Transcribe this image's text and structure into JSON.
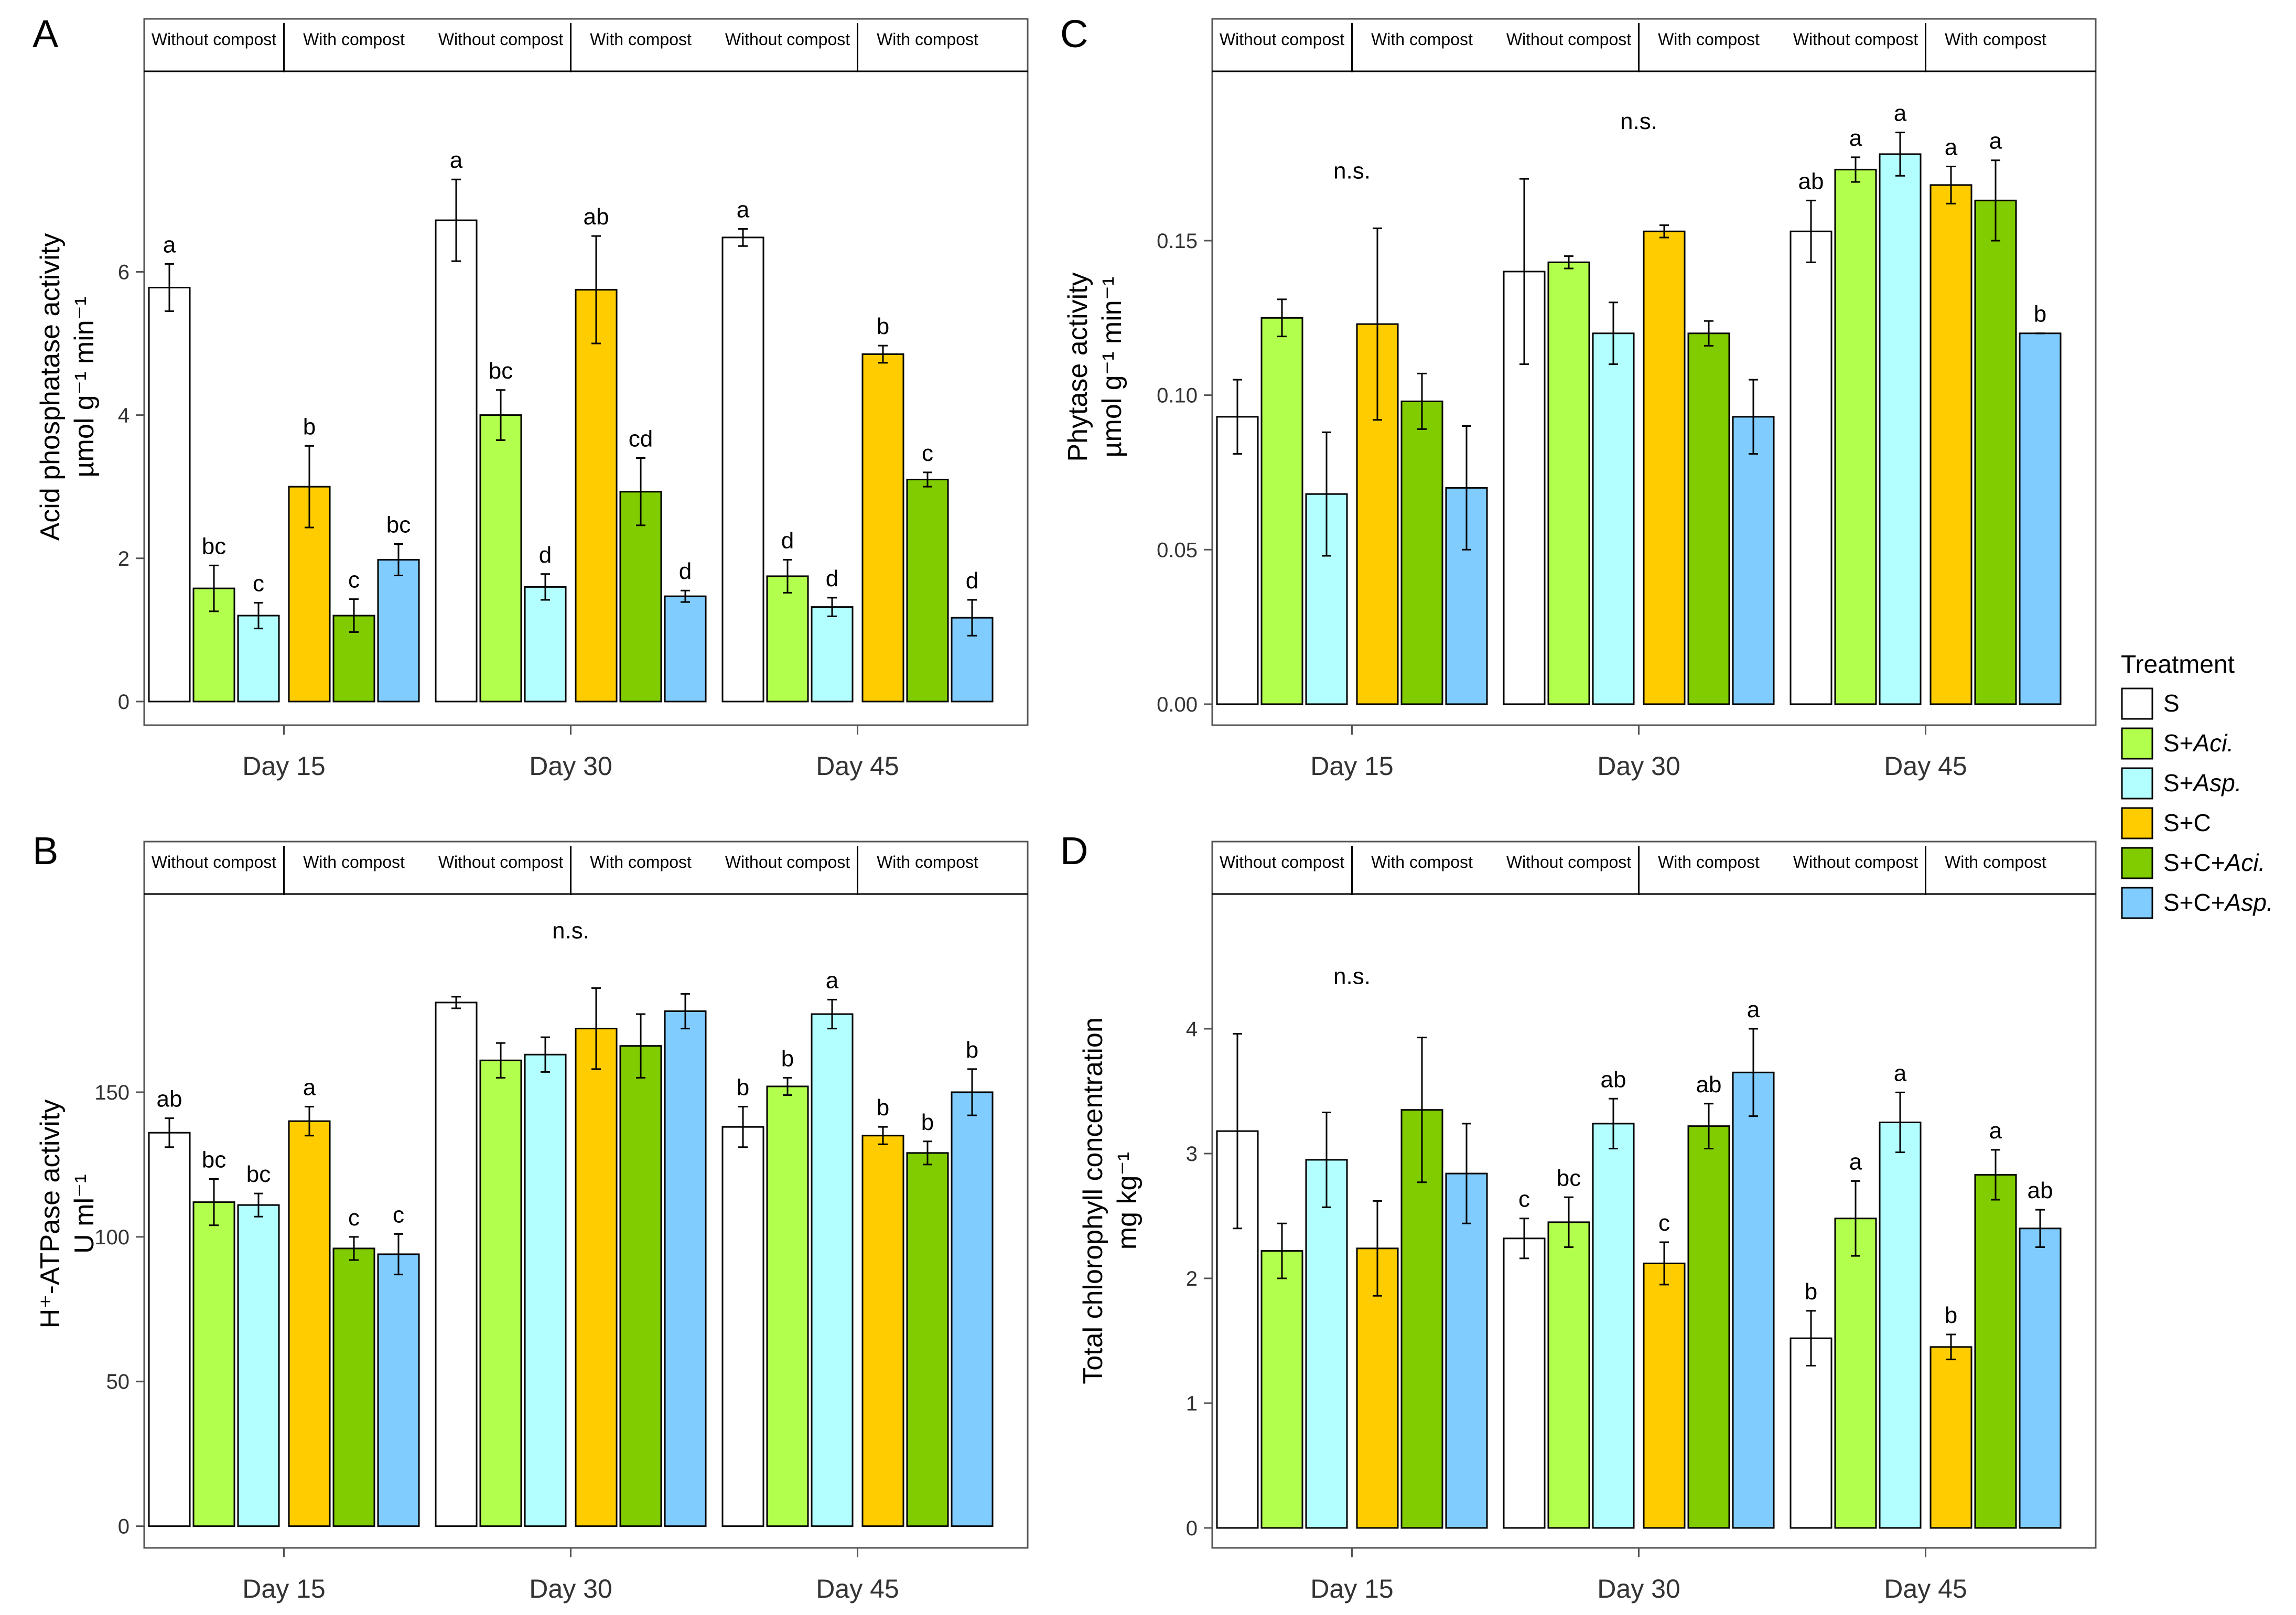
{
  "treatments": [
    {
      "key": "S",
      "label": "S",
      "italic": "",
      "color": "#ffffff"
    },
    {
      "key": "S_Aci",
      "label": "S+",
      "italic": "Aci.",
      "color": "#b3ff4d"
    },
    {
      "key": "S_Asp",
      "label": "S+",
      "italic": "Asp.",
      "color": "#b3ffff"
    },
    {
      "key": "S_C",
      "label": "S+C",
      "italic": "",
      "color": "#ffcc00"
    },
    {
      "key": "S_C_Aci",
      "label": "S+C+",
      "italic": "Aci.",
      "color": "#80cc00"
    },
    {
      "key": "S_C_Asp",
      "label": "S+C+",
      "italic": "Asp.",
      "color": "#80ccff"
    }
  ],
  "legend": {
    "title": "Treatment"
  },
  "strip_labels": [
    "Without compost",
    "With compost",
    "Without compost",
    "With compost",
    "Without compost",
    "With compost"
  ],
  "chart_data": [
    {
      "panel": "A",
      "type": "bar",
      "ylabel": [
        "Acid phosphatase activity",
        "µmol g⁻¹ min⁻¹"
      ],
      "categories": [
        "Day 15",
        "Day 30",
        "Day 45"
      ],
      "ylim": [
        -0.33,
        8.8
      ],
      "yticks": [
        {
          "v": 0,
          "t": "0"
        },
        {
          "v": 2,
          "t": "2"
        },
        {
          "v": 4,
          "t": "4"
        },
        {
          "v": 6,
          "t": "6"
        }
      ],
      "groups": [
        {
          "values": [
            5.78,
            1.58,
            1.2,
            3.0,
            1.2,
            1.98
          ],
          "errors": [
            0.33,
            0.32,
            0.18,
            0.57,
            0.23,
            0.22
          ],
          "letters": [
            "a",
            "bc",
            "c",
            "b",
            "c",
            "bc"
          ],
          "ns": ""
        },
        {
          "values": [
            6.72,
            4.0,
            1.6,
            5.75,
            2.93,
            1.47
          ],
          "errors": [
            0.57,
            0.35,
            0.18,
            0.75,
            0.47,
            0.08
          ],
          "letters": [
            "a",
            "bc",
            "d",
            "ab",
            "cd",
            "d"
          ],
          "ns": ""
        },
        {
          "values": [
            6.48,
            1.75,
            1.32,
            4.85,
            3.1,
            1.17
          ],
          "errors": [
            0.12,
            0.23,
            0.13,
            0.12,
            0.1,
            0.25
          ],
          "letters": [
            "a",
            "d",
            "d",
            "b",
            "c",
            "d"
          ],
          "ns": ""
        }
      ]
    },
    {
      "panel": "B",
      "type": "bar",
      "ylabel": [
        "H⁺-ATPase activity",
        "U ml⁻¹"
      ],
      "categories": [
        "Day 15",
        "Day 30",
        "Day 45"
      ],
      "ylim": [
        -7.5,
        218.5
      ],
      "yticks": [
        {
          "v": 0,
          "t": "0"
        },
        {
          "v": 50,
          "t": "50"
        },
        {
          "v": 100,
          "t": "100"
        },
        {
          "v": 150,
          "t": "150"
        }
      ],
      "groups": [
        {
          "values": [
            136,
            112,
            111,
            140,
            96,
            94
          ],
          "errors": [
            5,
            8,
            4,
            5,
            4,
            7
          ],
          "letters": [
            "ab",
            "bc",
            "bc",
            "a",
            "c",
            "c"
          ],
          "ns": ""
        },
        {
          "values": [
            181,
            161,
            163,
            172,
            166,
            178
          ],
          "errors": [
            2,
            6,
            6,
            14,
            11,
            6
          ],
          "letters": [
            "",
            "",
            "",
            "",
            "",
            ""
          ],
          "ns": "n.s."
        },
        {
          "values": [
            138,
            152,
            177,
            135,
            129,
            150
          ],
          "errors": [
            7,
            3,
            5,
            3,
            4,
            8
          ],
          "letters": [
            "b",
            "b",
            "a",
            "b",
            "b",
            "b"
          ],
          "ns": ""
        }
      ]
    },
    {
      "panel": "C",
      "type": "bar",
      "ylabel": [
        "Phytase activity",
        "µmol g⁻¹ min⁻¹"
      ],
      "categories": [
        "Day 15",
        "Day 30",
        "Day 45"
      ],
      "ylim": [
        -0.0068,
        0.2048
      ],
      "yticks": [
        {
          "v": 0,
          "t": "0.00"
        },
        {
          "v": 0.05,
          "t": "0.05"
        },
        {
          "v": 0.1,
          "t": "0.10"
        },
        {
          "v": 0.15,
          "t": "0.15"
        }
      ],
      "groups": [
        {
          "values": [
            0.093,
            0.125,
            0.068,
            0.123,
            0.098,
            0.07
          ],
          "errors": [
            0.012,
            0.006,
            0.02,
            0.031,
            0.009,
            0.02
          ],
          "letters": [
            "",
            "",
            "",
            "",
            "",
            ""
          ],
          "ns": "n.s."
        },
        {
          "values": [
            0.14,
            0.143,
            0.12,
            0.153,
            0.12,
            0.093
          ],
          "errors": [
            0.03,
            0.002,
            0.01,
            0.002,
            0.004,
            0.012
          ],
          "letters": [
            "",
            "",
            "",
            "",
            "",
            ""
          ],
          "ns": "n.s."
        },
        {
          "values": [
            0.153,
            0.173,
            0.178,
            0.168,
            0.163,
            0.12
          ],
          "errors": [
            0.01,
            0.004,
            0.007,
            0.006,
            0.013,
            0.0
          ],
          "letters": [
            "ab",
            "a",
            "a",
            "a",
            "a",
            "b"
          ],
          "ns": ""
        }
      ]
    },
    {
      "panel": "D",
      "type": "bar",
      "ylabel": [
        "Total chlorophyll concentration",
        "mg kg⁻¹"
      ],
      "categories": [
        "Day 15",
        "Day 30",
        "Day 45"
      ],
      "ylim": [
        -0.16,
        5.08
      ],
      "yticks": [
        {
          "v": 0,
          "t": "0"
        },
        {
          "v": 1,
          "t": "1"
        },
        {
          "v": 2,
          "t": "2"
        },
        {
          "v": 3,
          "t": "3"
        },
        {
          "v": 4,
          "t": "4"
        }
      ],
      "groups": [
        {
          "values": [
            3.18,
            2.22,
            2.95,
            2.24,
            3.35,
            2.84
          ],
          "errors": [
            0.78,
            0.22,
            0.38,
            0.38,
            0.58,
            0.4
          ],
          "letters": [
            "",
            "",
            "",
            "",
            "",
            ""
          ],
          "ns": "n.s."
        },
        {
          "values": [
            2.32,
            2.45,
            3.24,
            2.12,
            3.22,
            3.65
          ],
          "errors": [
            0.16,
            0.2,
            0.2,
            0.17,
            0.18,
            0.35
          ],
          "letters": [
            "c",
            "bc",
            "ab",
            "c",
            "ab",
            "a"
          ],
          "ns": ""
        },
        {
          "values": [
            1.52,
            2.48,
            3.25,
            1.45,
            2.83,
            2.4
          ],
          "errors": [
            0.22,
            0.3,
            0.24,
            0.1,
            0.2,
            0.15
          ],
          "letters": [
            "b",
            "a",
            "a",
            "b",
            "a",
            "ab"
          ],
          "ns": ""
        }
      ]
    }
  ]
}
